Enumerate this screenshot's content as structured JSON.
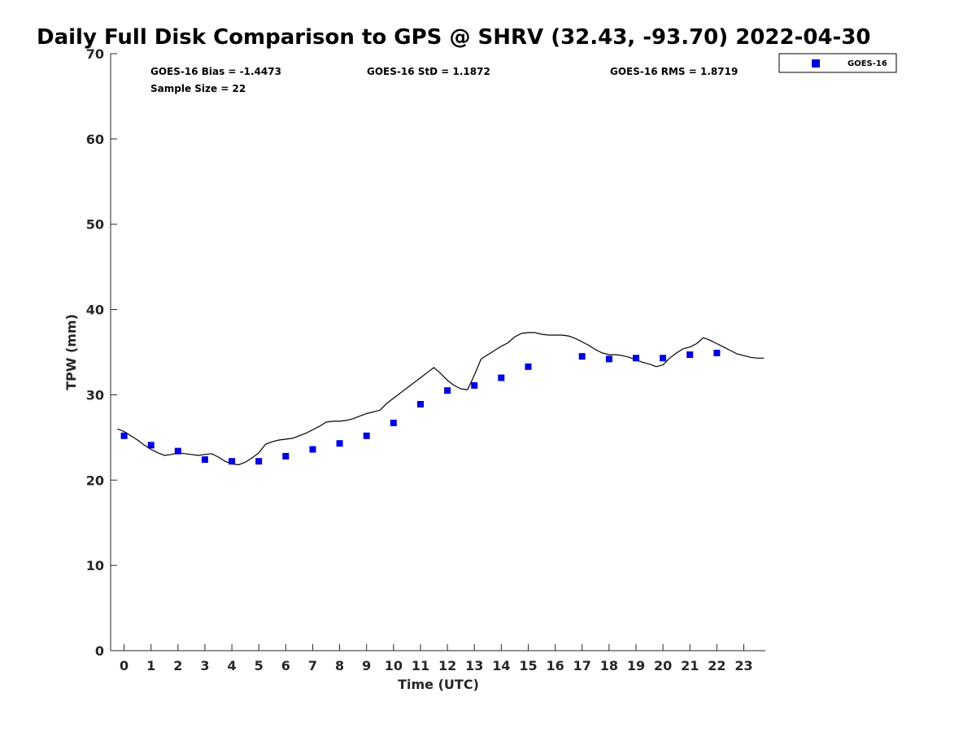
{
  "chart_data": {
    "type": "scatter",
    "title": "Daily Full Disk Comparison to GPS @ SHRV (32.43, -93.70) 2022-04-30",
    "xlabel": "Time (UTC)",
    "ylabel": "TPW (mm)",
    "xlim": [
      -0.5,
      23.8
    ],
    "ylim": [
      0,
      70
    ],
    "x_ticks": [
      0,
      1,
      2,
      3,
      4,
      5,
      6,
      7,
      8,
      9,
      10,
      11,
      12,
      13,
      14,
      15,
      16,
      17,
      18,
      19,
      20,
      21,
      22,
      23
    ],
    "y_ticks": [
      0,
      10,
      20,
      30,
      40,
      50,
      60,
      70
    ],
    "grid": false,
    "legend": {
      "position": "top-right",
      "entries": [
        "GOES-16"
      ]
    },
    "stats": {
      "bias": "GOES-16 Bias = -1.4473",
      "std": "GOES-16 StD = 1.1872",
      "rms": "GOES-16 RMS = 1.8719",
      "sample_size": "Sample Size = 22"
    },
    "series": [
      {
        "name": "GOES-16",
        "kind": "scatter",
        "marker": "square",
        "color": "#0000dd",
        "x": [
          0,
          1,
          2,
          3,
          4,
          5,
          6,
          7,
          8,
          9,
          10,
          11,
          12,
          13,
          14,
          15,
          17,
          18,
          19,
          20,
          21,
          22
        ],
        "y": [
          25.2,
          24.1,
          23.4,
          22.4,
          22.2,
          22.2,
          22.8,
          23.6,
          24.3,
          25.2,
          26.7,
          28.9,
          30.5,
          31.1,
          32.0,
          33.3,
          34.5,
          34.2,
          34.3,
          34.3,
          34.7,
          34.9
        ]
      },
      {
        "kind": "line",
        "color": "#000000",
        "x": [
          -0.25,
          0.0,
          0.25,
          0.5,
          0.75,
          1.0,
          1.25,
          1.5,
          1.75,
          2.0,
          2.25,
          2.5,
          2.75,
          3.0,
          3.25,
          3.5,
          3.75,
          4.0,
          4.25,
          4.5,
          4.75,
          5.0,
          5.25,
          5.5,
          5.75,
          6.0,
          6.25,
          6.5,
          6.75,
          7.0,
          7.25,
          7.5,
          7.75,
          8.0,
          8.25,
          8.5,
          8.75,
          9.0,
          9.25,
          9.5,
          9.75,
          10.0,
          10.25,
          10.5,
          10.75,
          11.0,
          11.25,
          11.5,
          11.75,
          12.0,
          12.25,
          12.5,
          12.75,
          13.0,
          13.25,
          13.5,
          13.75,
          14.0,
          14.25,
          14.5,
          14.75,
          15.0,
          15.25,
          15.5,
          15.75,
          16.0,
          16.25,
          16.5,
          16.75,
          17.0,
          17.25,
          17.5,
          17.75,
          18.0,
          18.25,
          18.5,
          18.75,
          19.0,
          19.25,
          19.5,
          19.75,
          20.0,
          20.25,
          20.5,
          20.75,
          21.0,
          21.25,
          21.5,
          21.75,
          22.0,
          22.25,
          22.5,
          22.75,
          23.0,
          23.25,
          23.5,
          23.75
        ],
        "y": [
          26.0,
          25.7,
          25.2,
          24.7,
          24.1,
          23.6,
          23.2,
          22.9,
          23.0,
          23.2,
          23.1,
          23.0,
          22.9,
          23.0,
          23.1,
          22.7,
          22.2,
          21.9,
          21.8,
          22.1,
          22.6,
          23.2,
          24.2,
          24.5,
          24.7,
          24.8,
          24.9,
          25.2,
          25.5,
          25.9,
          26.3,
          26.8,
          26.9,
          26.9,
          27.0,
          27.2,
          27.5,
          27.8,
          28.0,
          28.2,
          29.0,
          29.6,
          30.2,
          30.8,
          31.4,
          32.0,
          32.6,
          33.2,
          32.5,
          31.7,
          31.1,
          30.7,
          30.6,
          32.3,
          34.2,
          34.7,
          35.2,
          35.7,
          36.1,
          36.8,
          37.2,
          37.3,
          37.3,
          37.1,
          37.0,
          37.0,
          37.0,
          36.9,
          36.6,
          36.2,
          35.8,
          35.3,
          34.9,
          34.7,
          34.7,
          34.6,
          34.4,
          34.1,
          33.8,
          33.6,
          33.3,
          33.5,
          34.3,
          34.9,
          35.4,
          35.6,
          36.0,
          36.7,
          36.4,
          36.0,
          35.6,
          35.2,
          34.8,
          34.6,
          34.4,
          34.3,
          34.3
        ]
      }
    ]
  }
}
